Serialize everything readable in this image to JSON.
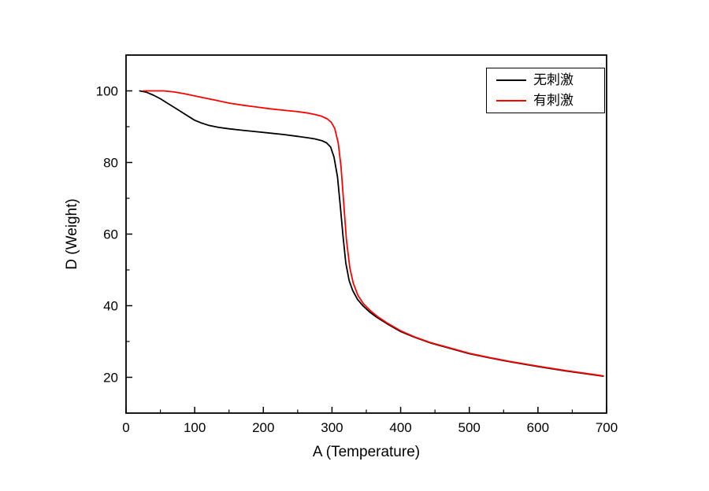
{
  "chart_data": {
    "type": "line",
    "title": "",
    "xlabel": "A (Temperature)",
    "ylabel": "D (Weight)",
    "xlim": [
      0,
      700
    ],
    "ylim": [
      10,
      110
    ],
    "xticks": [
      0,
      100,
      200,
      300,
      400,
      500,
      600,
      700
    ],
    "yticks": [
      20,
      40,
      60,
      80,
      100
    ],
    "x_minor_step": 50,
    "y_minor_step": 10,
    "grid": false,
    "legend_position": "top-right-inside",
    "background_color": "#ffffff",
    "axis_color": "#000000",
    "series": [
      {
        "name": "无刺激",
        "color": "#000000",
        "x": [
          20,
          30,
          40,
          50,
          60,
          70,
          80,
          90,
          100,
          110,
          120,
          135,
          150,
          170,
          190,
          210,
          230,
          250,
          265,
          275,
          285,
          292,
          298,
          303,
          308,
          312,
          316,
          320,
          325,
          330,
          337,
          345,
          355,
          365,
          380,
          400,
          420,
          445,
          470,
          500,
          530,
          560,
          600,
          640,
          695
        ],
        "y": [
          100,
          99.6,
          98.8,
          97.8,
          96.6,
          95.4,
          94.2,
          93,
          91.8,
          91,
          90.4,
          89.8,
          89.4,
          89,
          88.6,
          88.2,
          87.8,
          87.3,
          86.9,
          86.6,
          86.1,
          85.5,
          84.3,
          81.5,
          76,
          68,
          59.5,
          52,
          47,
          44.3,
          41.8,
          40,
          38.2,
          36.8,
          35,
          32.8,
          31.2,
          29.5,
          28.2,
          26.6,
          25.4,
          24.3,
          23,
          21.8,
          20.3
        ]
      },
      {
        "name": "有刺激",
        "color": "#ff0000",
        "x": [
          25,
          40,
          55,
          70,
          85,
          100,
          115,
          130,
          150,
          170,
          190,
          210,
          230,
          250,
          265,
          275,
          285,
          293,
          299,
          304,
          309,
          313,
          317,
          321,
          326,
          331,
          338,
          346,
          356,
          366,
          380,
          400,
          420,
          445,
          470,
          500,
          530,
          560,
          600,
          640,
          695
        ],
        "y": [
          100,
          100,
          100,
          99.7,
          99.2,
          98.6,
          98,
          97.4,
          96.6,
          96,
          95.5,
          95,
          94.6,
          94.2,
          93.8,
          93.4,
          92.9,
          92.2,
          91.2,
          89.5,
          85.5,
          79,
          69,
          58.5,
          50.5,
          46.3,
          42.8,
          40.5,
          38.6,
          37,
          35.2,
          33,
          31.3,
          29.6,
          28.3,
          26.7,
          25.5,
          24.4,
          23.1,
          21.9,
          20.4
        ]
      }
    ]
  }
}
